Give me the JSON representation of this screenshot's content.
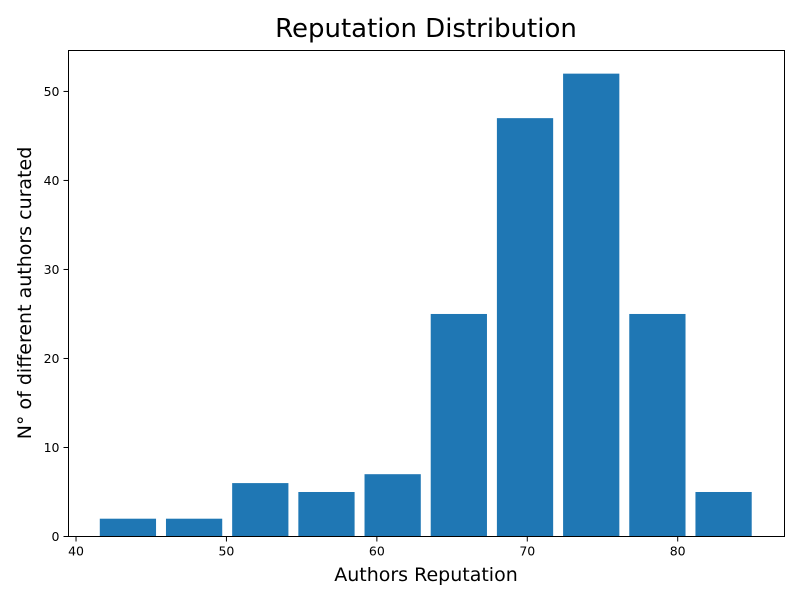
{
  "chart_data": {
    "type": "bar",
    "title": "Reputation Distribution",
    "xlabel": "Authors Reputation",
    "ylabel": "N° of different authors curated",
    "bar_color": "#1f77b4",
    "bin_width": 4.4,
    "bars": [
      {
        "x": 43.45,
        "value": 2
      },
      {
        "x": 47.85,
        "value": 2
      },
      {
        "x": 52.25,
        "value": 6
      },
      {
        "x": 56.65,
        "value": 5
      },
      {
        "x": 61.05,
        "value": 7
      },
      {
        "x": 65.45,
        "value": 25
      },
      {
        "x": 69.85,
        "value": 47
      },
      {
        "x": 74.25,
        "value": 52
      },
      {
        "x": 78.65,
        "value": 25
      },
      {
        "x": 83.05,
        "value": 5
      }
    ],
    "xlim": [
      39.5,
      87.1
    ],
    "ylim": [
      0,
      54.6
    ],
    "xticks": [
      40,
      50,
      60,
      70,
      80
    ],
    "yticks": [
      0,
      10,
      20,
      30,
      40,
      50
    ],
    "grid": false,
    "legend": "none"
  }
}
